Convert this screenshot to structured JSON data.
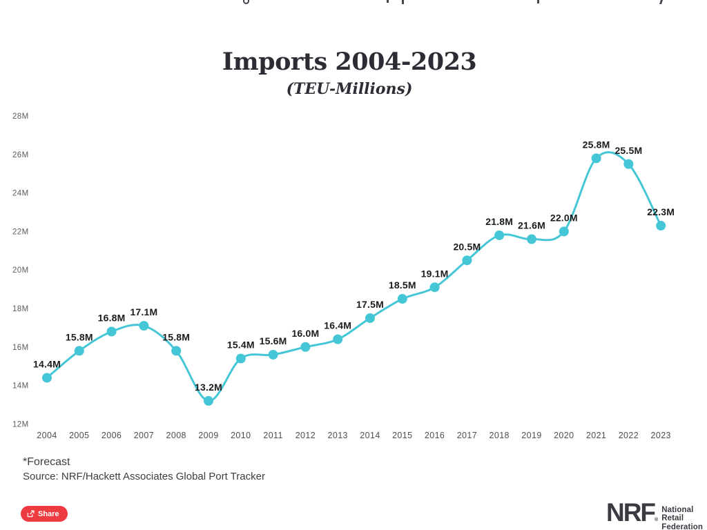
{
  "chart_data": {
    "type": "line",
    "title": "Imports 2004-2023",
    "subtitle": "(TEU-Millions)",
    "x": [
      "2004",
      "2005",
      "2006",
      "2007",
      "2008",
      "2009",
      "2010",
      "2011",
      "2012",
      "2013",
      "2014",
      "2015",
      "2016",
      "2017",
      "2018",
      "2019",
      "2020",
      "2021",
      "2022",
      "2023"
    ],
    "values": [
      14.4,
      15.8,
      16.8,
      17.1,
      15.8,
      13.2,
      15.4,
      15.6,
      16.0,
      16.4,
      17.5,
      18.5,
      19.1,
      20.5,
      21.8,
      21.6,
      22.0,
      25.8,
      25.5,
      22.3
    ],
    "point_labels": [
      "14.4M",
      "15.8M",
      "16.8M",
      "17.1M",
      "15.8M",
      "13.2M",
      "15.4M",
      "15.6M",
      "16.0M",
      "16.4M",
      "17.5M",
      "18.5M",
      "19.1M",
      "20.5M",
      "21.8M",
      "21.6M",
      "22.0M",
      "25.8M",
      "25.5M",
      "22.3M"
    ],
    "yticks": [
      28,
      26,
      24,
      22,
      20,
      18,
      16,
      14,
      12
    ],
    "ytick_labels": [
      "28M",
      "26M",
      "24M",
      "22M",
      "20M",
      "18M",
      "16M",
      "14M",
      "12M"
    ],
    "ylim": [
      12,
      28
    ],
    "grid": false,
    "legend": "none",
    "line_color": "#45c6d6",
    "marker_color": "#45c6d6",
    "point_label_color": "#1b1b1e",
    "ytick_color": "#5c5d61",
    "xtick_color": "#4d4e53"
  },
  "notes": {
    "forecast": "*Forecast",
    "source": "Source: NRF/Hackett Associates Global Port Tracker"
  },
  "share": {
    "label": "Share",
    "bg_color": "#ee3b40"
  },
  "brand": {
    "name": "NRF",
    "registered_mark": "®",
    "tagline_line1": "National",
    "tagline_line2": "Retail",
    "tagline_line3": "Federation",
    "color": "#3a3b42"
  }
}
